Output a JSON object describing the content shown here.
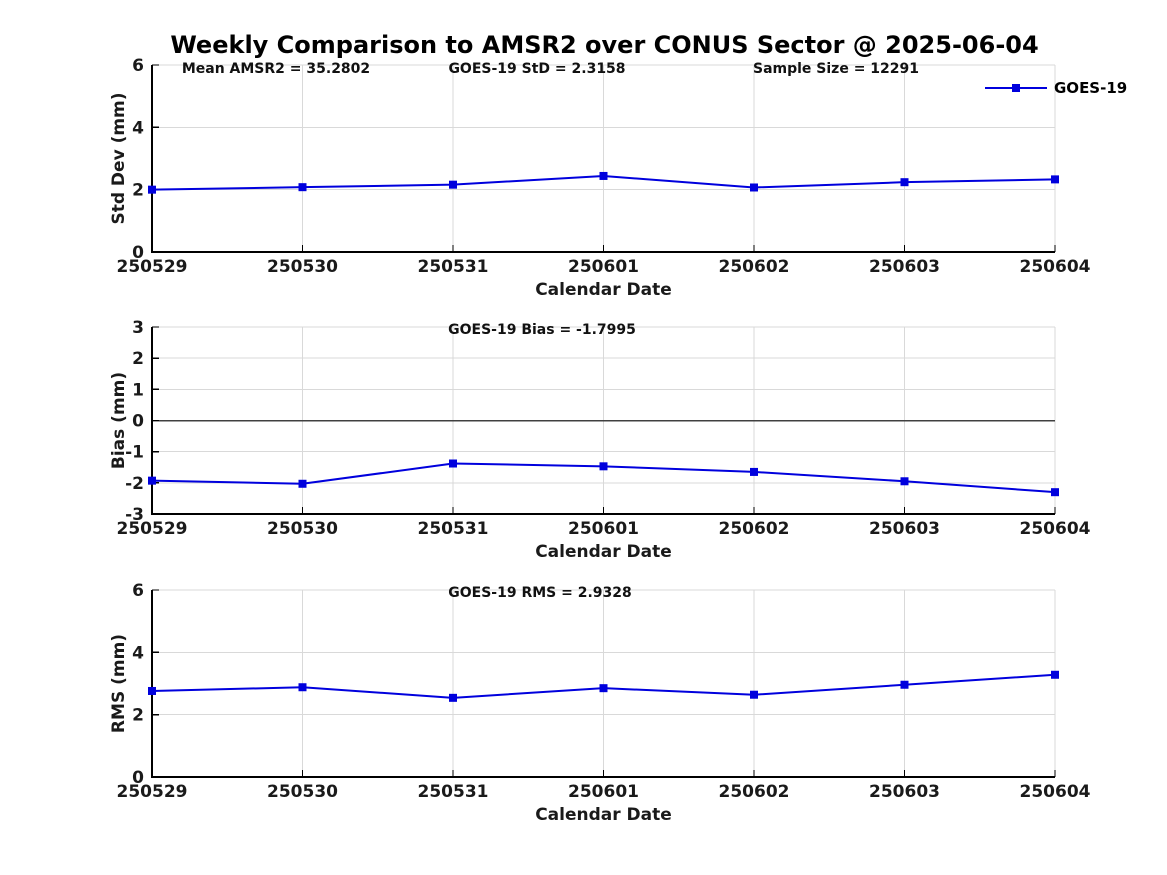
{
  "title": "Weekly Comparison to AMSR2 over CONUS Sector @ 2025-06-04",
  "colors": {
    "line": "#0000DD",
    "grid": "#d9d9d9",
    "axis": "#000000",
    "text": "#1a1a1a",
    "zero_line": "#404040"
  },
  "chart_data": [
    {
      "type": "line",
      "name": "std-dev",
      "ylabel": "Std Dev (mm)",
      "xlabel": "Calendar Date",
      "ylim": [
        0,
        6
      ],
      "yticks": [
        0,
        2,
        4,
        6
      ],
      "grid": true,
      "legend": {
        "entries": [
          "GOES-19"
        ],
        "position": "top-right-inside"
      },
      "annotations": [
        "Mean AMSR2 = 35.2802",
        "GOES-19 StD = 2.3158",
        "Sample Size = 12291"
      ],
      "categories": [
        "250529",
        "250530",
        "250531",
        "250601",
        "250602",
        "250603",
        "250604"
      ],
      "series": [
        {
          "name": "GOES-19",
          "values": [
            2.0,
            2.08,
            2.16,
            2.44,
            2.07,
            2.24,
            2.33
          ]
        }
      ]
    },
    {
      "type": "line",
      "name": "bias",
      "ylabel": "Bias (mm)",
      "xlabel": "Calendar Date",
      "ylim": [
        -3,
        3
      ],
      "yticks": [
        -3,
        -2,
        -1,
        0,
        1,
        2,
        3
      ],
      "grid": true,
      "zero_line": true,
      "annotations": [
        "GOES-19 Bias  = -1.7995"
      ],
      "categories": [
        "250529",
        "250530",
        "250531",
        "250601",
        "250602",
        "250603",
        "250604"
      ],
      "series": [
        {
          "name": "GOES-19",
          "values": [
            -1.93,
            -2.03,
            -1.38,
            -1.47,
            -1.65,
            -1.95,
            -2.3
          ]
        }
      ]
    },
    {
      "type": "line",
      "name": "rms",
      "ylabel": "RMS (mm)",
      "xlabel": "Calendar Date",
      "ylim": [
        0,
        6
      ],
      "yticks": [
        0,
        2,
        4,
        6
      ],
      "grid": true,
      "annotations": [
        "GOES-19 RMS = 2.9328"
      ],
      "categories": [
        "250529",
        "250530",
        "250531",
        "250601",
        "250602",
        "250603",
        "250604"
      ],
      "series": [
        {
          "name": "GOES-19",
          "values": [
            2.76,
            2.88,
            2.54,
            2.85,
            2.64,
            2.96,
            3.28
          ]
        }
      ]
    }
  ]
}
